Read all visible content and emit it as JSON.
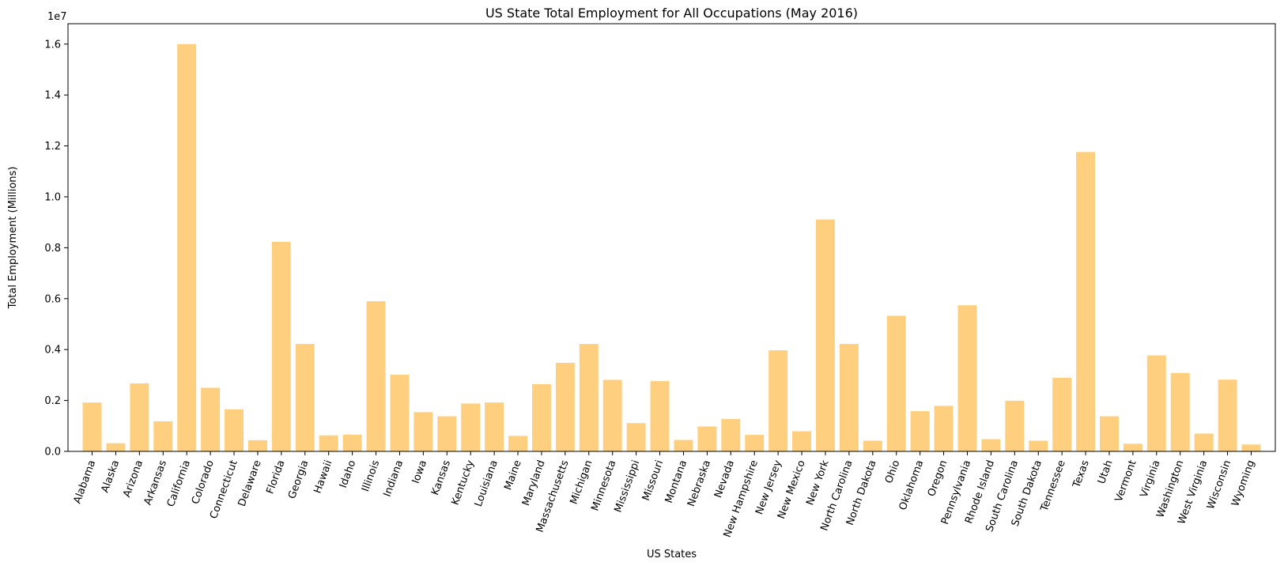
{
  "chart_data": {
    "type": "bar",
    "title": "US State Total Employment for All Occupations (May 2016)",
    "xlabel": "US States",
    "ylabel": "Total Employment (Millions)",
    "offset_text": "1e7",
    "ylim": [
      0,
      16800000
    ],
    "yticks": [
      0,
      2000000,
      4000000,
      6000000,
      8000000,
      10000000,
      12000000,
      14000000,
      16000000
    ],
    "ytick_labels": [
      "0.0",
      "0.2",
      "0.4",
      "0.6",
      "0.8",
      "1.0",
      "1.2",
      "1.4",
      "1.6"
    ],
    "bar_color": "#ffcf80",
    "grid": false,
    "categories": [
      "Alabama",
      "Alaska",
      "Arizona",
      "Arkansas",
      "California",
      "Colorado",
      "Connecticut",
      "Delaware",
      "Florida",
      "Georgia",
      "Hawaii",
      "Idaho",
      "Illinois",
      "Indiana",
      "Iowa",
      "Kansas",
      "Kentucky",
      "Louisiana",
      "Maine",
      "Maryland",
      "Massachusetts",
      "Michigan",
      "Minnesota",
      "Mississippi",
      "Missouri",
      "Montana",
      "Nebraska",
      "Nevada",
      "New Hampshire",
      "New Jersey",
      "New Mexico",
      "New York",
      "North Carolina",
      "North Dakota",
      "Ohio",
      "Oklahoma",
      "Oregon",
      "Pennsylvania",
      "Rhode Island",
      "South Carolina",
      "South Dakota",
      "Tennessee",
      "Texas",
      "Utah",
      "Vermont",
      "Virginia",
      "Washington",
      "West Virginia",
      "Wisconsin",
      "Wyoming"
    ],
    "values": [
      1920000,
      320000,
      2670000,
      1180000,
      16000000,
      2500000,
      1650000,
      440000,
      8230000,
      4220000,
      630000,
      660000,
      5900000,
      3010000,
      1540000,
      1380000,
      1880000,
      1920000,
      610000,
      2640000,
      3480000,
      4220000,
      2810000,
      1110000,
      2760000,
      450000,
      980000,
      1270000,
      650000,
      3970000,
      790000,
      9110000,
      4220000,
      420000,
      5330000,
      1580000,
      1790000,
      5740000,
      480000,
      1990000,
      420000,
      2890000,
      11760000,
      1380000,
      300000,
      3770000,
      3080000,
      700000,
      2820000,
      270000
    ]
  }
}
